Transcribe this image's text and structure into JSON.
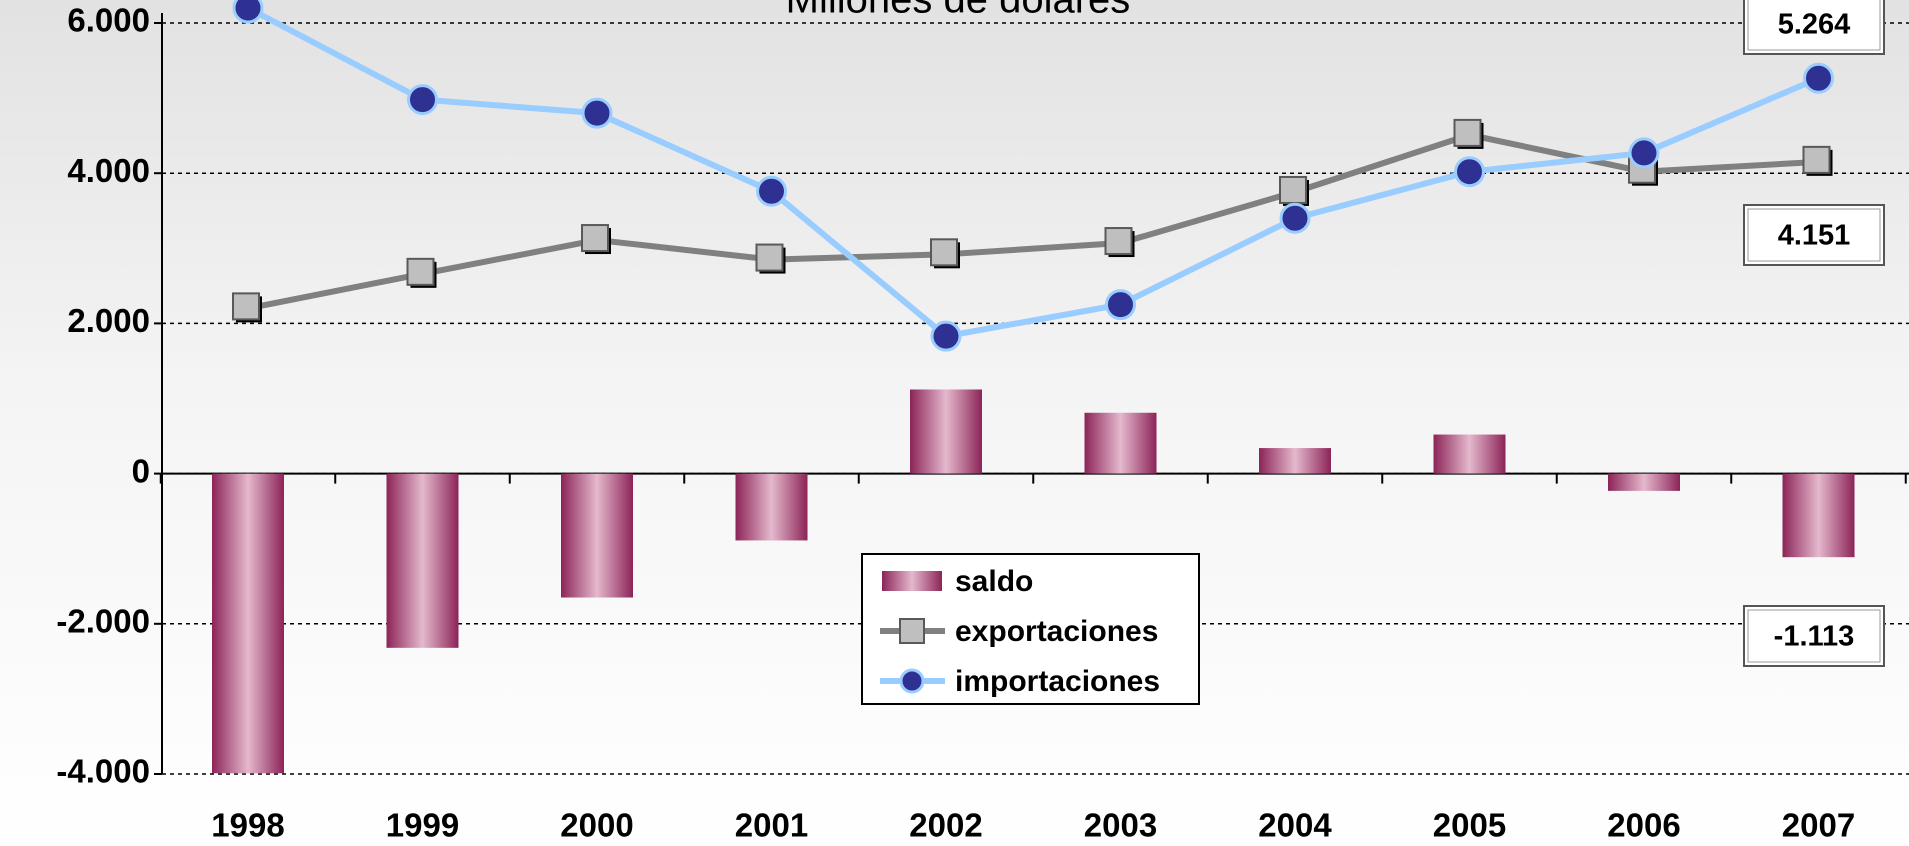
{
  "chart_data": {
    "type": "combo",
    "title": "Millones de dólares",
    "categories": [
      "1998",
      "1999",
      "2000",
      "2001",
      "2002",
      "2003",
      "2004",
      "2005",
      "2006",
      "2007"
    ],
    "series": [
      {
        "name": "saldo",
        "type": "bar",
        "color": "#a0386a",
        "values": [
          -3990,
          -2320,
          -1650,
          -890,
          1120,
          810,
          340,
          520,
          -230,
          -1113
        ],
        "value_labels": [
          null,
          null,
          null,
          null,
          null,
          null,
          null,
          null,
          null,
          "-1.113"
        ]
      },
      {
        "name": "exportaciones",
        "type": "line",
        "color": "#808080",
        "values": [
          2200,
          2660,
          3110,
          2850,
          2920,
          3070,
          3750,
          4510,
          4020,
          4151
        ],
        "value_labels": [
          null,
          null,
          null,
          null,
          null,
          null,
          null,
          null,
          null,
          "4.151"
        ]
      },
      {
        "name": "importaciones",
        "type": "line",
        "color": "#99ccff",
        "values": [
          6200,
          4980,
          4800,
          3760,
          1830,
          2250,
          3400,
          4020,
          4270,
          5264
        ],
        "value_labels": [
          null,
          null,
          null,
          null,
          null,
          null,
          null,
          null,
          null,
          "5.264"
        ]
      }
    ],
    "ylim": [
      -4000,
      6000
    ],
    "yticks": [
      {
        "value": -4000,
        "label": "-4.000"
      },
      {
        "value": -2000,
        "label": "-2.000"
      },
      0,
      {
        "value": 2000,
        "label": "2.000"
      },
      {
        "value": 4000,
        "label": "4.000"
      },
      {
        "value": 6000,
        "label": "6.000"
      }
    ],
    "grid": true,
    "legend": "bottom"
  }
}
